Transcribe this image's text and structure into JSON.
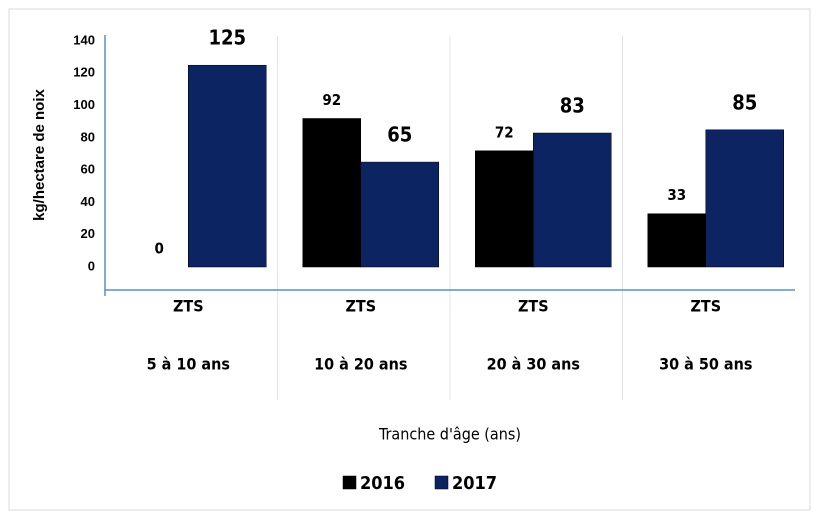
{
  "chart_data": {
    "type": "bar",
    "categories": [
      "5 à 10 ans",
      "10 à 20 ans",
      "20 à 30 ans",
      "30 à 50 ans"
    ],
    "subcategories": [
      "ZTS",
      "ZTS",
      "ZTS",
      "ZTS"
    ],
    "series": [
      {
        "name": "2016",
        "color": "#000000",
        "values": [
          0,
          92,
          72,
          33
        ]
      },
      {
        "name": "2017",
        "color": "#0d2463",
        "values": [
          125,
          65,
          83,
          85
        ]
      }
    ],
    "ylabel": "kg/hectare de noix",
    "xlabel": "Tranche d'âge (ans)",
    "ylim": [
      0,
      140
    ],
    "yticks": [
      0,
      20,
      40,
      60,
      80,
      100,
      120,
      140
    ],
    "grid": false,
    "legend": "bottom"
  }
}
